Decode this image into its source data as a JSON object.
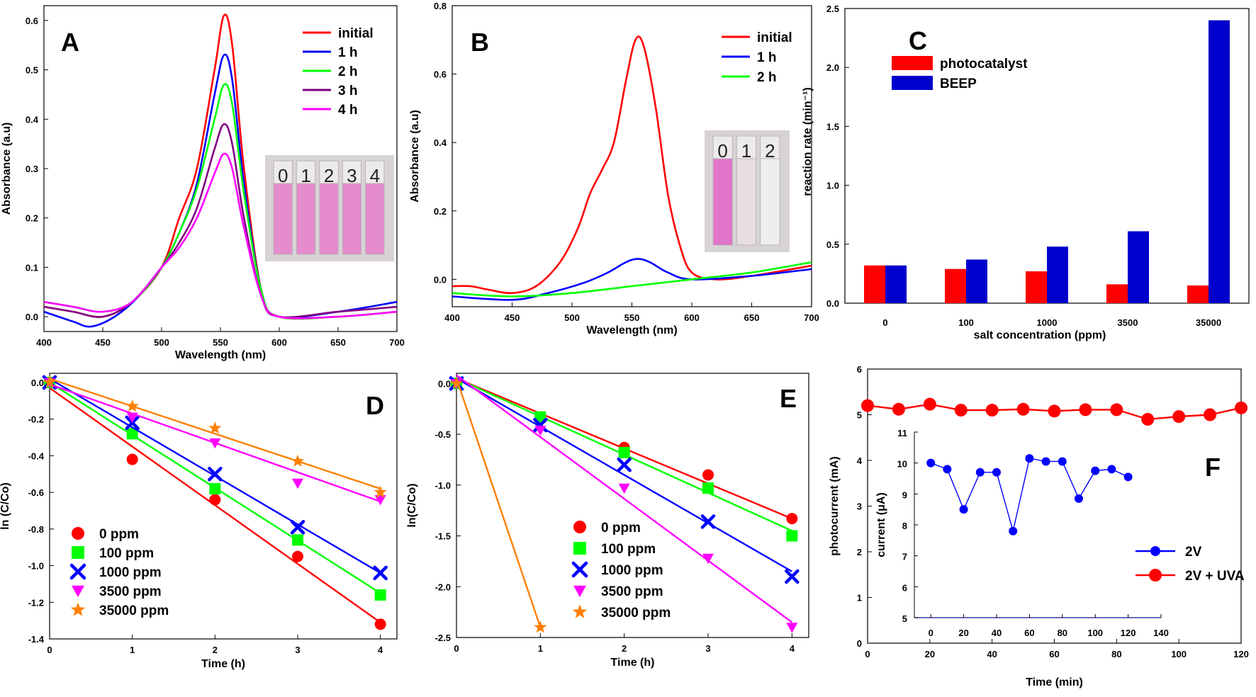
{
  "chart_data": [
    {
      "panel": "A",
      "type": "line",
      "xlabel": "Wavelength (nm)",
      "ylabel": "Absorbance (a.u)",
      "xlim": [
        400,
        700
      ],
      "ylim": [
        -0.03,
        0.63
      ],
      "xticks": [
        400,
        450,
        500,
        550,
        600,
        650,
        700
      ],
      "yticks": [
        0.0,
        0.1,
        0.2,
        0.3,
        0.4,
        0.5,
        0.6
      ],
      "ytick_labels": [
        "0.0",
        "0.1",
        "0.2",
        "0.3",
        "0.4",
        "0.5",
        "0.6"
      ],
      "legend_position": "top-right",
      "inset": {
        "labels": [
          "0",
          "1",
          "2",
          "3",
          "4"
        ],
        "color": "#e58ccc"
      },
      "series": [
        {
          "name": "initial",
          "color": "#ff0000",
          "points": [
            [
              400,
              0.02
            ],
            [
              425,
              0.01
            ],
            [
              450,
              0.0
            ],
            [
              475,
              0.03
            ],
            [
              500,
              0.1
            ],
            [
              515,
              0.2
            ],
            [
              530,
              0.3
            ],
            [
              545,
              0.5
            ],
            [
              553,
              0.61
            ],
            [
              560,
              0.55
            ],
            [
              570,
              0.3
            ],
            [
              585,
              0.05
            ],
            [
              600,
              0.0
            ],
            [
              650,
              0.0
            ],
            [
              700,
              0.01
            ]
          ]
        },
        {
          "name": "1 h",
          "color": "#0000ff",
          "points": [
            [
              400,
              0.01
            ],
            [
              425,
              -0.01
            ],
            [
              440,
              -0.02
            ],
            [
              460,
              0.0
            ],
            [
              480,
              0.04
            ],
            [
              500,
              0.1
            ],
            [
              515,
              0.17
            ],
            [
              530,
              0.27
            ],
            [
              545,
              0.45
            ],
            [
              553,
              0.53
            ],
            [
              560,
              0.48
            ],
            [
              570,
              0.27
            ],
            [
              585,
              0.05
            ],
            [
              600,
              0.0
            ],
            [
              650,
              0.01
            ],
            [
              700,
              0.03
            ]
          ]
        },
        {
          "name": "2 h",
          "color": "#00ff00",
          "points": [
            [
              400,
              0.03
            ],
            [
              425,
              0.02
            ],
            [
              450,
              0.01
            ],
            [
              475,
              0.03
            ],
            [
              500,
              0.1
            ],
            [
              515,
              0.17
            ],
            [
              530,
              0.26
            ],
            [
              545,
              0.4
            ],
            [
              553,
              0.47
            ],
            [
              560,
              0.43
            ],
            [
              570,
              0.25
            ],
            [
              585,
              0.05
            ],
            [
              600,
              0.0
            ],
            [
              650,
              0.0
            ],
            [
              700,
              0.01
            ]
          ]
        },
        {
          "name": "3 h",
          "color": "#800080",
          "points": [
            [
              400,
              0.02
            ],
            [
              425,
              0.01
            ],
            [
              450,
              0.0
            ],
            [
              475,
              0.03
            ],
            [
              500,
              0.1
            ],
            [
              515,
              0.15
            ],
            [
              530,
              0.22
            ],
            [
              545,
              0.34
            ],
            [
              553,
              0.39
            ],
            [
              560,
              0.35
            ],
            [
              570,
              0.2
            ],
            [
              585,
              0.04
            ],
            [
              600,
              0.0
            ],
            [
              650,
              0.01
            ],
            [
              700,
              0.02
            ]
          ]
        },
        {
          "name": "4 h",
          "color": "#ff00ff",
          "points": [
            [
              400,
              0.03
            ],
            [
              425,
              0.02
            ],
            [
              450,
              0.01
            ],
            [
              475,
              0.03
            ],
            [
              500,
              0.1
            ],
            [
              515,
              0.14
            ],
            [
              530,
              0.2
            ],
            [
              545,
              0.29
            ],
            [
              553,
              0.33
            ],
            [
              560,
              0.3
            ],
            [
              570,
              0.18
            ],
            [
              585,
              0.04
            ],
            [
              600,
              0.0
            ],
            [
              650,
              0.0
            ],
            [
              700,
              0.01
            ]
          ]
        }
      ]
    },
    {
      "panel": "B",
      "type": "line",
      "xlabel": "Wavelength (nm)",
      "ylabel": "Absorbance (a.u)",
      "xlim": [
        400,
        700
      ],
      "ylim": [
        -0.08,
        0.8
      ],
      "xticks": [
        400,
        450,
        500,
        550,
        600,
        650,
        700
      ],
      "xtick_labels": [
        "400",
        "450",
        "500",
        "550",
        "600",
        "650",
        "700"
      ],
      "yticks": [
        0.0,
        0.2,
        0.4,
        0.6,
        0.8
      ],
      "ytick_labels": [
        "0.0",
        "0.2",
        "0.4",
        "0.6",
        "0.8"
      ],
      "legend_position": "top-right",
      "inset": {
        "labels": [
          "0",
          "1",
          "2"
        ],
        "color": "#e074c9"
      },
      "series": [
        {
          "name": "initial",
          "color": "#ff0000",
          "points": [
            [
              400,
              -0.02
            ],
            [
              415,
              -0.02
            ],
            [
              430,
              -0.03
            ],
            [
              450,
              -0.04
            ],
            [
              470,
              -0.02
            ],
            [
              490,
              0.05
            ],
            [
              505,
              0.15
            ],
            [
              515,
              0.25
            ],
            [
              525,
              0.32
            ],
            [
              535,
              0.4
            ],
            [
              545,
              0.58
            ],
            [
              553,
              0.7
            ],
            [
              560,
              0.68
            ],
            [
              570,
              0.5
            ],
            [
              580,
              0.25
            ],
            [
              590,
              0.1
            ],
            [
              600,
              0.02
            ],
            [
              620,
              0.0
            ],
            [
              650,
              0.01
            ],
            [
              700,
              0.04
            ]
          ]
        },
        {
          "name": "1 h",
          "color": "#0000ff",
          "points": [
            [
              400,
              -0.05
            ],
            [
              450,
              -0.06
            ],
            [
              480,
              -0.04
            ],
            [
              510,
              -0.01
            ],
            [
              530,
              0.02
            ],
            [
              545,
              0.05
            ],
            [
              555,
              0.06
            ],
            [
              565,
              0.05
            ],
            [
              580,
              0.02
            ],
            [
              600,
              0.0
            ],
            [
              650,
              0.01
            ],
            [
              700,
              0.03
            ]
          ]
        },
        {
          "name": "2 h",
          "color": "#00ff00",
          "points": [
            [
              400,
              -0.04
            ],
            [
              450,
              -0.05
            ],
            [
              500,
              -0.04
            ],
            [
              550,
              -0.02
            ],
            [
              600,
              0.0
            ],
            [
              650,
              0.02
            ],
            [
              700,
              0.05
            ]
          ]
        }
      ]
    },
    {
      "panel": "C",
      "type": "bar",
      "xlabel": "salt concentration (ppm)",
      "ylabel": "reaction rate (min⁻¹)",
      "categories": [
        "0",
        "100",
        "1000",
        "3500",
        "35000"
      ],
      "ylim": [
        0,
        2.5
      ],
      "yticks": [
        0.0,
        0.5,
        1.0,
        1.5,
        2.0,
        2.5
      ],
      "ytick_labels": [
        "0.0",
        "0.5",
        "1.0",
        "1.5",
        "2.0",
        "2.5"
      ],
      "legend_position": "top-left",
      "series": [
        {
          "name": "photocatalyst",
          "color": "#ff0000",
          "values": [
            0.32,
            0.29,
            0.27,
            0.16,
            0.15
          ]
        },
        {
          "name": "BEEP",
          "color": "#0000cc",
          "values": [
            0.32,
            0.37,
            0.48,
            0.61,
            2.4
          ]
        }
      ]
    },
    {
      "panel": "D",
      "type": "scatter",
      "xlabel": "Time (h)",
      "ylabel": "ln (C/Co)",
      "xlim": [
        0,
        4.2
      ],
      "ylim": [
        -1.4,
        0.05
      ],
      "xticks": [
        0,
        1,
        2,
        3,
        4
      ],
      "yticks": [
        0.0,
        -0.2,
        -0.4,
        -0.6,
        -0.8,
        -1.0,
        -1.2,
        -1.4
      ],
      "ytick_labels": [
        "0.0",
        "-0.2",
        "-0.4",
        "-0.6",
        "-0.8",
        "-1.0",
        "-1.2",
        "-1.4"
      ],
      "legend_position": "bottom-left",
      "series": [
        {
          "name": "0 ppm",
          "color": "#ff0000",
          "marker": "circle",
          "x": [
            0,
            1,
            2,
            3,
            4
          ],
          "y": [
            0.0,
            -0.42,
            -0.64,
            -0.95,
            -1.32
          ],
          "fit": [
            -0.03,
            -1.31
          ]
        },
        {
          "name": "100 ppm",
          "color": "#00ff00",
          "marker": "square",
          "x": [
            0,
            1,
            2,
            3,
            4
          ],
          "y": [
            0.0,
            -0.28,
            -0.58,
            -0.86,
            -1.16
          ],
          "fit": [
            0.0,
            -1.15
          ]
        },
        {
          "name": "1000 ppm",
          "color": "#0000ff",
          "marker": "cross",
          "x": [
            0,
            1,
            2,
            3,
            4
          ],
          "y": [
            0.0,
            -0.22,
            -0.5,
            -0.79,
            -1.04
          ],
          "fit": [
            0.02,
            -1.04
          ]
        },
        {
          "name": "3500 ppm",
          "color": "#ff00ff",
          "marker": "triangle-down",
          "x": [
            0,
            1,
            2,
            3,
            4
          ],
          "y": [
            0.0,
            -0.19,
            -0.33,
            -0.55,
            -0.64
          ],
          "fit": [
            -0.01,
            -0.65
          ]
        },
        {
          "name": "35000 ppm",
          "color": "#ff8000",
          "marker": "star",
          "x": [
            0,
            1,
            2,
            3,
            4
          ],
          "y": [
            0.0,
            -0.13,
            -0.25,
            -0.43,
            -0.6
          ],
          "fit": [
            0.02,
            -0.58
          ]
        }
      ]
    },
    {
      "panel": "E",
      "type": "scatter",
      "xlabel": "Time (h)",
      "ylabel": "ln(C/Co)",
      "xlim": [
        0,
        4.2
      ],
      "ylim": [
        -2.5,
        0.1
      ],
      "xticks": [
        0,
        1,
        2,
        3,
        4
      ],
      "yticks": [
        0.0,
        -0.5,
        -1.0,
        -1.5,
        -2.0,
        -2.5
      ],
      "ytick_labels": [
        "0.0",
        "-0.5",
        "-1.0",
        "-1.5",
        "-2.0",
        "-2.5"
      ],
      "legend_position": "bottom-left",
      "series": [
        {
          "name": "0 ppm",
          "color": "#ff0000",
          "marker": "circle",
          "x": [
            0,
            1,
            2,
            3,
            4
          ],
          "y": [
            0.0,
            -0.33,
            -0.63,
            -0.9,
            -1.33
          ],
          "fit": [
            0.05,
            -1.33
          ]
        },
        {
          "name": "100 ppm",
          "color": "#00ff00",
          "marker": "square",
          "x": [
            0,
            1,
            2,
            3,
            4
          ],
          "y": [
            0.0,
            -0.33,
            -0.68,
            -1.03,
            -1.5
          ],
          "fit": [
            0.05,
            -1.45
          ]
        },
        {
          "name": "1000 ppm",
          "color": "#0000ff",
          "marker": "cross",
          "x": [
            0,
            1,
            2,
            3,
            4
          ],
          "y": [
            0.0,
            -0.41,
            -0.8,
            -1.36,
            -1.9
          ],
          "fit": [
            0.05,
            -1.85
          ]
        },
        {
          "name": "3500 ppm",
          "color": "#ff00ff",
          "marker": "triangle-down",
          "x": [
            0,
            1,
            2,
            3,
            4
          ],
          "y": [
            0.0,
            -0.46,
            -1.03,
            -1.72,
            -2.4
          ],
          "fit": [
            0.08,
            -2.35
          ]
        },
        {
          "name": "35000 ppm",
          "color": "#ff8000",
          "marker": "star",
          "x": [
            0,
            1
          ],
          "y": [
            0.0,
            -2.4
          ],
          "fit_x": [
            0,
            1
          ],
          "fit": [
            0.05,
            -2.4
          ]
        }
      ]
    },
    {
      "panel": "F",
      "type": "line",
      "xlabel": "Time (min)",
      "ylabel": "photocurrent (mA)",
      "xlim": [
        0,
        120
      ],
      "ylim": [
        0,
        6
      ],
      "xticks": [
        0,
        20,
        40,
        60,
        80,
        100,
        120
      ],
      "yticks": [
        0,
        1,
        2,
        3,
        4,
        5,
        6
      ],
      "legend_position": "bottom-right",
      "series": [
        {
          "name": "2V + UVA",
          "color": "#ff0000",
          "marker": "circle",
          "x": [
            0,
            10,
            20,
            30,
            40,
            50,
            60,
            70,
            80,
            90,
            100,
            110,
            120
          ],
          "y": [
            5.2,
            5.12,
            5.23,
            5.1,
            5.1,
            5.12,
            5.08,
            5.11,
            5.11,
            4.9,
            4.96,
            5.0,
            5.15
          ]
        }
      ],
      "inset": {
        "xlabel": "",
        "ylabel": "current (μA)",
        "xlim": [
          -10,
          140
        ],
        "ylim": [
          5,
          11
        ],
        "xticks": [
          0,
          20,
          40,
          60,
          80,
          100,
          120,
          140
        ],
        "yticks": [
          5,
          6,
          7,
          8,
          9,
          10,
          11
        ],
        "series": [
          {
            "name": "2V",
            "color": "#0000ff",
            "marker": "circle",
            "x": [
              0,
              10,
              20,
              30,
              40,
              50,
              60,
              70,
              80,
              90,
              100,
              110,
              120
            ],
            "y": [
              10.0,
              9.8,
              8.5,
              9.7,
              9.7,
              7.8,
              10.15,
              10.05,
              10.05,
              8.85,
              9.75,
              9.8,
              9.55
            ]
          }
        ]
      }
    }
  ]
}
